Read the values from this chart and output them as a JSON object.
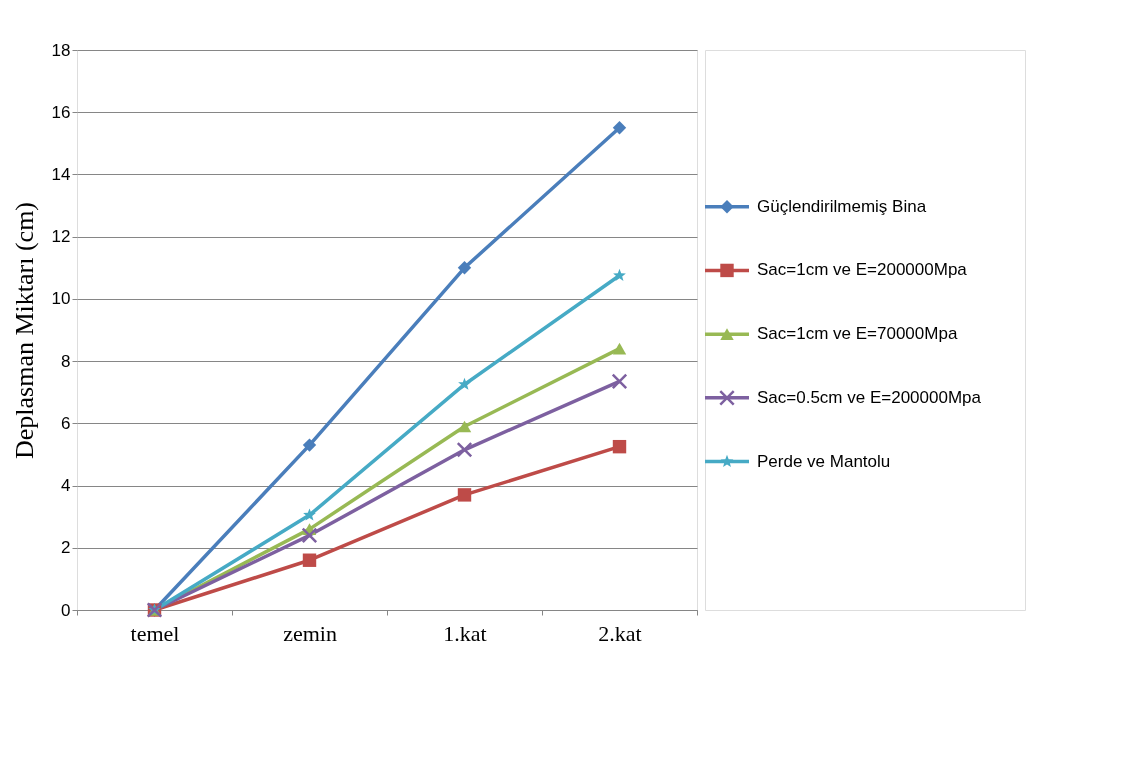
{
  "chart_data": {
    "type": "line",
    "ylabel": "Deplasman Miktarı (cm)",
    "categories": [
      "temel",
      "zemin",
      "1.kat",
      "2.kat"
    ],
    "ylim": [
      0,
      18
    ],
    "yticks": [
      0,
      2,
      4,
      6,
      8,
      10,
      12,
      14,
      16,
      18
    ],
    "grid": "y",
    "legend": "right",
    "line_style": "solid",
    "series": [
      {
        "name": "Güçlendirilmemiş Bina",
        "color": "#4a7ebb",
        "marker": "diamond",
        "values": [
          0,
          5.3,
          11.0,
          15.5
        ]
      },
      {
        "name": "Sac=1cm ve E=200000Mpa",
        "color": "#be4b48",
        "marker": "square",
        "values": [
          0,
          1.6,
          3.7,
          5.25
        ]
      },
      {
        "name": "Sac=1cm ve E=70000Mpa",
        "color": "#98b954",
        "marker": "triangle",
        "values": [
          0,
          2.6,
          5.9,
          8.4
        ]
      },
      {
        "name": "Sac=0.5cm ve E=200000Mpa",
        "color": "#7d60a0",
        "marker": "cross",
        "values": [
          0,
          2.4,
          5.15,
          7.35
        ]
      },
      {
        "name": "Perde ve Mantolu",
        "color": "#46aac5",
        "marker": "star",
        "values": [
          0,
          3.05,
          7.25,
          10.75
        ]
      }
    ]
  }
}
